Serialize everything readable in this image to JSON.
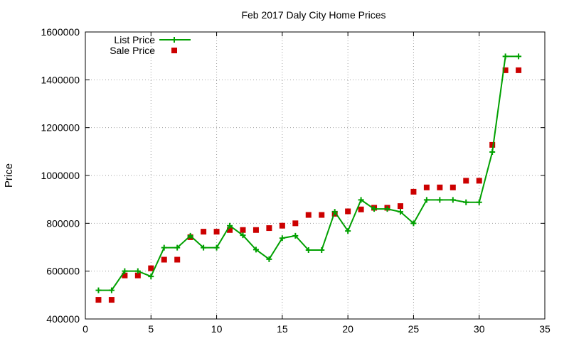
{
  "colors": {
    "list_price": "#00a000",
    "sale_price": "#cc0000",
    "grid": "#a0a0a0",
    "axis": "#000000"
  },
  "chart_data": {
    "type": "line",
    "title": "Feb 2017 Daly City Home Prices",
    "xlabel": "",
    "ylabel": "Price",
    "xlim": [
      0,
      35
    ],
    "ylim": [
      400000,
      1600000
    ],
    "xticks": [
      0,
      5,
      10,
      15,
      20,
      25,
      30,
      35
    ],
    "yticks": [
      400000,
      600000,
      800000,
      1000000,
      1200000,
      1400000,
      1600000
    ],
    "grid": true,
    "legend_position": "top-left",
    "series": [
      {
        "name": "List Price",
        "style": "line-with-plus-markers",
        "x": [
          1,
          2,
          3,
          4,
          5,
          6,
          7,
          8,
          9,
          10,
          11,
          12,
          13,
          14,
          15,
          16,
          17,
          18,
          19,
          20,
          21,
          22,
          23,
          24,
          25,
          26,
          27,
          28,
          29,
          30,
          31,
          32,
          33
        ],
        "y": [
          520000,
          520000,
          600000,
          600000,
          578000,
          698000,
          698000,
          748000,
          698000,
          698000,
          790000,
          750000,
          690000,
          650000,
          738000,
          748000,
          688000,
          688000,
          848000,
          768000,
          898000,
          860000,
          860000,
          848000,
          800000,
          898000,
          898000,
          898000,
          888000,
          888000,
          1098000,
          1498000,
          1498000
        ]
      },
      {
        "name": "Sale Price",
        "style": "square-markers",
        "x": [
          1,
          2,
          3,
          4,
          5,
          6,
          7,
          8,
          9,
          10,
          11,
          12,
          13,
          14,
          15,
          16,
          17,
          18,
          19,
          20,
          21,
          22,
          23,
          24,
          25,
          26,
          27,
          28,
          29,
          30,
          31,
          32,
          33
        ],
        "y": [
          480000,
          480000,
          582000,
          582000,
          612000,
          648000,
          648000,
          742000,
          765000,
          765000,
          772000,
          772000,
          772000,
          780000,
          790000,
          800000,
          835000,
          835000,
          840000,
          850000,
          858000,
          865000,
          865000,
          872000,
          932000,
          950000,
          950000,
          950000,
          978000,
          978000,
          1128000,
          1440000,
          1440000
        ]
      }
    ]
  }
}
